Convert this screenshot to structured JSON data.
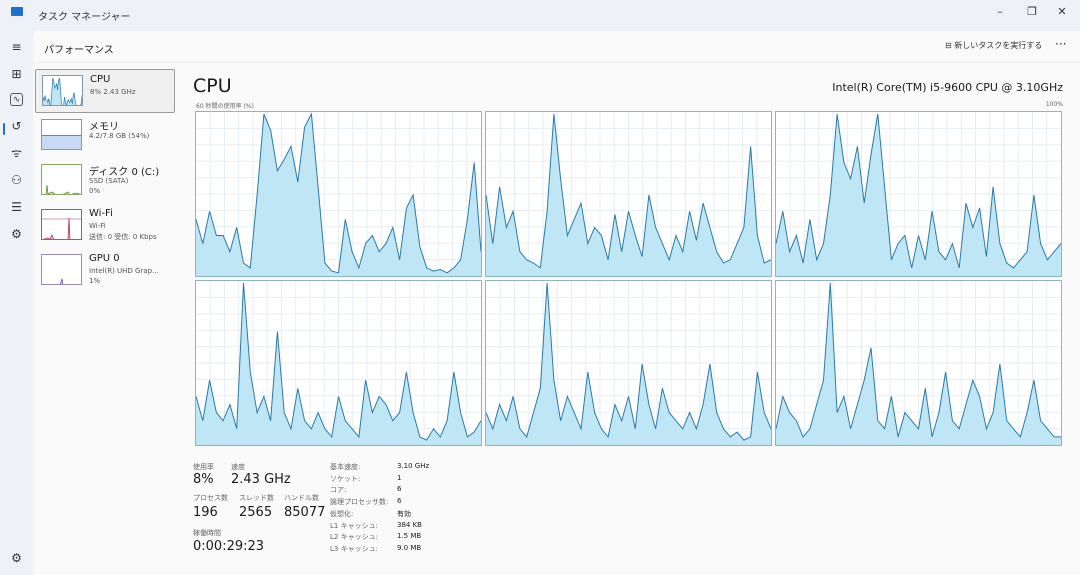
{
  "window": {
    "title": "タスク マネージャー",
    "minimize": "–",
    "maximize": "❐",
    "close": "✕"
  },
  "header": {
    "title": "パフォーマンス",
    "run_task": "新しいタスクを実行する",
    "more": "···"
  },
  "resources": [
    {
      "name": "CPU",
      "sub1": "8% 2.43 GHz"
    },
    {
      "name": "メモリ",
      "sub1": "4.2/7.8 GB (54%)"
    },
    {
      "name": "ディスク 0 (C:)",
      "sub1": "SSD (SATA)",
      "sub2": "0%"
    },
    {
      "name": "Wi-Fi",
      "sub1": "Wi-Fi",
      "sub2": "送信: 0 受信: 0 Kbps"
    },
    {
      "name": "GPU 0",
      "sub1": "Intel(R) UHD Grap...",
      "sub2": "1%"
    }
  ],
  "cpu": {
    "title": "CPU",
    "model": "Intel(R) Core(TM) i5-9600 CPU @ 3.10GHz",
    "axis_label": "60 秒間の使用率 (%)",
    "axis_max": "100%",
    "colors": {
      "line": "#2a7aa8",
      "fill": "#bfe6f5",
      "grid": "#e6eef2"
    },
    "cores": [
      [
        35,
        20,
        40,
        25,
        25,
        15,
        30,
        8,
        5,
        50,
        100,
        90,
        65,
        72,
        80,
        58,
        92,
        100,
        55,
        8,
        3,
        2,
        35,
        15,
        5,
        20,
        25,
        15,
        20,
        30,
        10,
        42,
        50,
        18,
        5,
        3,
        4,
        2,
        5,
        10,
        35,
        70,
        15
      ],
      [
        50,
        20,
        55,
        30,
        40,
        15,
        10,
        8,
        5,
        40,
        100,
        60,
        25,
        35,
        45,
        20,
        30,
        25,
        10,
        38,
        15,
        40,
        25,
        12,
        50,
        30,
        20,
        10,
        25,
        15,
        40,
        22,
        45,
        30,
        15,
        8,
        10,
        20,
        30,
        80,
        25,
        8,
        10
      ],
      [
        20,
        40,
        15,
        25,
        8,
        35,
        10,
        20,
        50,
        100,
        70,
        60,
        80,
        45,
        75,
        100,
        55,
        10,
        20,
        25,
        5,
        25,
        10,
        40,
        15,
        10,
        20,
        5,
        45,
        30,
        42,
        12,
        55,
        20,
        8,
        5,
        10,
        15,
        50,
        20,
        10,
        15,
        20
      ],
      [
        30,
        15,
        40,
        20,
        15,
        25,
        10,
        100,
        45,
        20,
        30,
        15,
        70,
        20,
        10,
        35,
        15,
        10,
        20,
        10,
        5,
        30,
        15,
        10,
        5,
        40,
        20,
        30,
        25,
        15,
        20,
        45,
        20,
        5,
        3,
        10,
        5,
        15,
        45,
        20,
        5,
        8,
        15
      ],
      [
        20,
        10,
        25,
        15,
        30,
        10,
        5,
        20,
        35,
        100,
        40,
        15,
        30,
        20,
        10,
        45,
        20,
        10,
        5,
        25,
        15,
        30,
        10,
        50,
        25,
        10,
        35,
        20,
        15,
        10,
        20,
        10,
        25,
        50,
        20,
        10,
        5,
        8,
        3,
        5,
        45,
        20,
        10
      ],
      [
        10,
        30,
        20,
        15,
        5,
        10,
        25,
        40,
        100,
        20,
        30,
        10,
        25,
        40,
        60,
        15,
        10,
        30,
        5,
        20,
        15,
        10,
        35,
        5,
        20,
        45,
        15,
        10,
        25,
        40,
        30,
        10,
        20,
        50,
        15,
        10,
        5,
        20,
        40,
        15,
        10,
        5,
        5
      ]
    ]
  },
  "stats": {
    "usage_label": "使用率",
    "usage": "8%",
    "speed_label": "速度",
    "speed": "2.43 GHz",
    "processes_label": "プロセス数",
    "processes": "196",
    "threads_label": "スレッド数",
    "threads": "2565",
    "handles_label": "ハンドル数",
    "handles": "85077",
    "uptime_label": "稼働時間",
    "uptime": "0:00:29:23",
    "details": [
      {
        "k": "基本速度:",
        "v": "3.10 GHz"
      },
      {
        "k": "ソケット:",
        "v": "1"
      },
      {
        "k": "コア:",
        "v": "6"
      },
      {
        "k": "論理プロセッサ数:",
        "v": "6"
      },
      {
        "k": "仮想化:",
        "v": "有効"
      },
      {
        "k": "L1 キャッシュ:",
        "v": "384 KB"
      },
      {
        "k": "L2 キャッシュ:",
        "v": "1.5 MB"
      },
      {
        "k": "L3 キャッシュ:",
        "v": "9.0 MB"
      }
    ]
  },
  "nav_icons": [
    "hamburger-icon",
    "processes-icon",
    "performance-icon",
    "app-history-icon",
    "startup-icon",
    "users-icon",
    "details-icon",
    "services-icon",
    "settings-icon"
  ]
}
